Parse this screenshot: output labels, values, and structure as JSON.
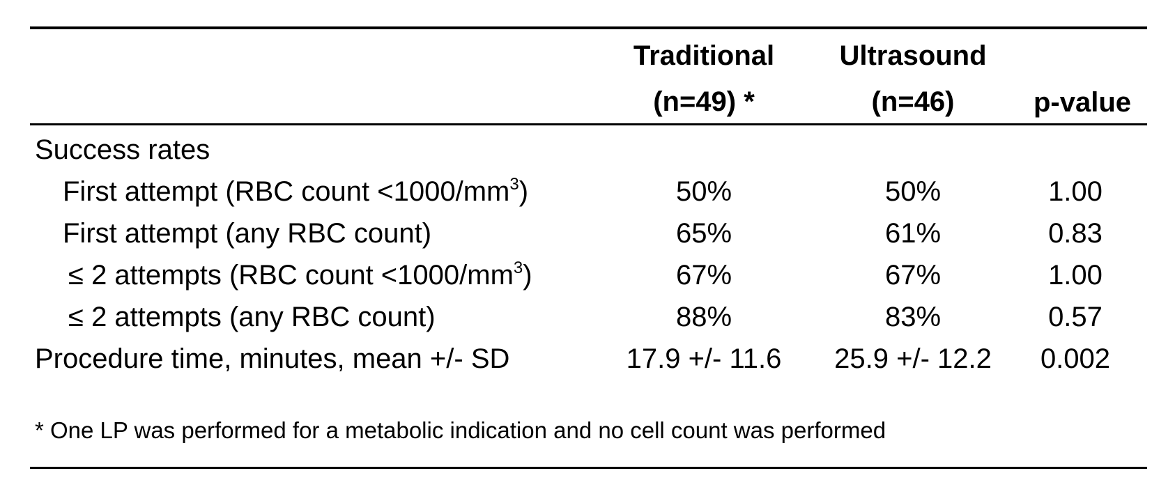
{
  "table": {
    "header": {
      "traditional_line1": "Traditional",
      "traditional_line2": "(n=49) *",
      "ultrasound_line1": "Ultrasound",
      "ultrasound_line2": "(n=46)",
      "pvalue": "p-value"
    },
    "section_success": "Success rates",
    "rows": [
      {
        "label": "First attempt (RBC count <1000/mm",
        "sup": "3",
        "label_after": ")",
        "traditional": "50%",
        "ultrasound": "50%",
        "pvalue": "1.00"
      },
      {
        "label": "First attempt (any RBC count)",
        "traditional": "65%",
        "ultrasound": "61%",
        "pvalue": "0.83"
      },
      {
        "label": "≤ 2 attempts (RBC count <1000/mm",
        "sup": "3",
        "label_after": ")",
        "traditional": "67%",
        "ultrasound": "67%",
        "pvalue": "1.00"
      },
      {
        "label": "≤ 2 attempts (any RBC count)",
        "traditional": "88%",
        "ultrasound": "83%",
        "pvalue": "0.57"
      }
    ],
    "procedure": {
      "label": "Procedure time, minutes, mean +/- SD",
      "traditional": "17.9 +/- 11.6",
      "ultrasound": "25.9 +/- 12.2",
      "pvalue": "0.002"
    },
    "footnote": "* One LP was performed for a metabolic indication and no cell count was performed"
  }
}
